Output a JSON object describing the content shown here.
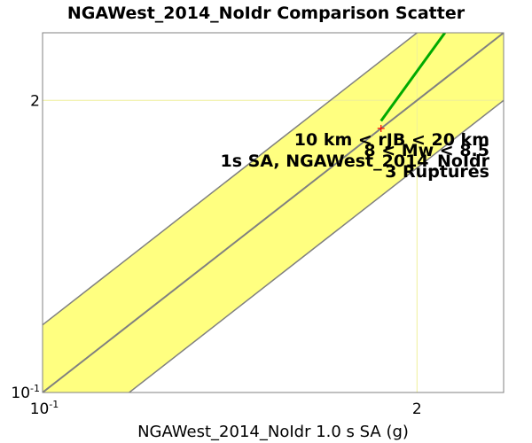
{
  "chart_data": {
    "type": "scatter",
    "title": "NGAWest_2014_NoIdr Comparison Scatter",
    "xlabel": "NGAWest_2014_NoIdr 1.0 s SA (g)",
    "ylabel": "",
    "xscale": "log",
    "yscale": "log",
    "xlim": [
      0.1,
      4
    ],
    "ylim": [
      0.1,
      4
    ],
    "x_ticks": [
      {
        "value": 0.1,
        "base": "10",
        "exp": "-1"
      },
      {
        "value": 2,
        "base": "2",
        "exp": ""
      }
    ],
    "y_ticks": [
      {
        "value": 0.1,
        "base": "10",
        "exp": "-1"
      },
      {
        "value": 2,
        "base": "2",
        "exp": ""
      }
    ],
    "band_factor": 2,
    "grid": true,
    "series": [
      {
        "kind": "point",
        "color": "#ff0000",
        "points": [
          [
            1.5,
            1.5
          ]
        ]
      },
      {
        "kind": "line",
        "color": "#00aa00",
        "points": [
          [
            1.5,
            1.62
          ],
          [
            2.5,
            4.0
          ]
        ]
      }
    ],
    "annotations": [
      "10 km < rJB < 20 km",
      "8 < Mw < 8.5",
      "1s SA, NGAWest_2014_NoIdr",
      "3 Ruptures"
    ],
    "colors": {
      "band": "#ffff80",
      "one_to_one": "#808080",
      "frame": "#808080",
      "grid": "#eeee99"
    }
  }
}
